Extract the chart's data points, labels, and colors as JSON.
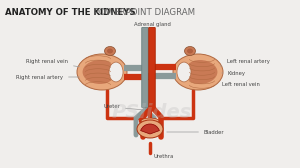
{
  "title_bold": "ANATOMY OF THE KIDNEYS",
  "title_light": " POWERPOINT DIAGRAM",
  "bg_color": "#f0eeec",
  "title_color": "#333333",
  "labels": {
    "adrenal_gland": "Adrenal gland",
    "right_renal_vein": "Right renal vein",
    "right_renal_artery": "Right renal artery",
    "left_renal_artery": "Left renal artery",
    "kidney": "Kidney",
    "left_renal_vein": "Left renal vein",
    "ureter": "Ureter",
    "bladder": "Bladder",
    "urethra": "Urethra"
  },
  "watermark": "PSlides",
  "aorta_color": "#cc3311",
  "vena_cava_color": "#8a9a9a",
  "kidney_outer_color": "#e8a87c",
  "kidney_inner_color": "#c97a55",
  "kidney_hilum_color": "#e8a87c",
  "bladder_top_color": "#e8a87c",
  "bladder_bot_color": "#c0392b",
  "adrenal_color": "#c97a55",
  "ureter_color": "#cc3311"
}
